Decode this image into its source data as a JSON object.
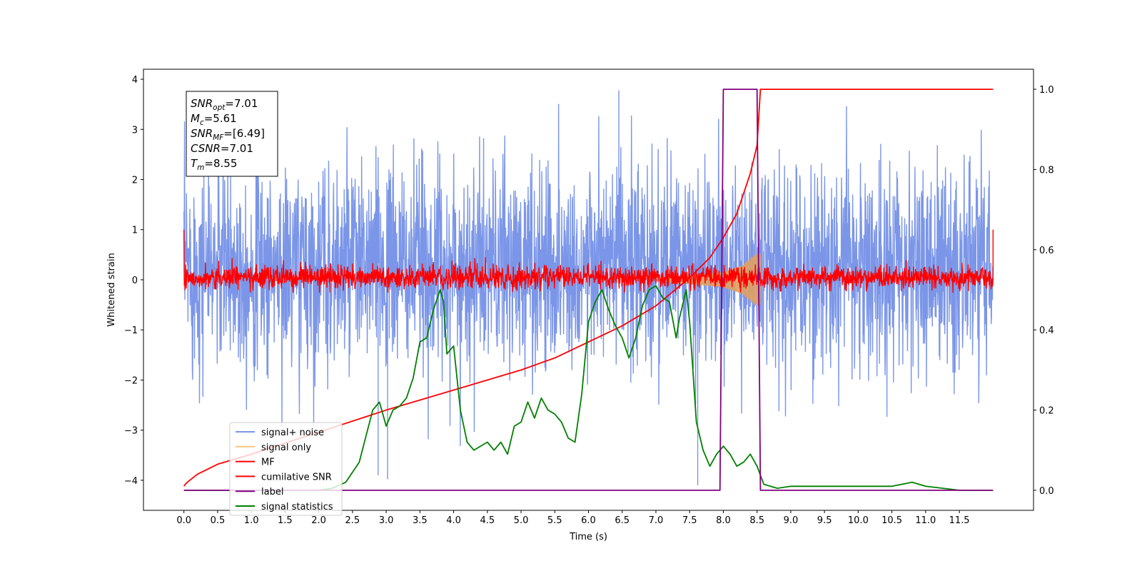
{
  "chart_data": {
    "type": "line",
    "xlabel": "Time (s)",
    "ylabel": "Whitened strain",
    "xlim": [
      -0.6,
      12.6
    ],
    "ylim": [
      -4.6,
      4.2
    ],
    "y2lim": [
      -0.05,
      1.05
    ],
    "x_ticks": [
      0.0,
      0.5,
      1.0,
      1.5,
      2.0,
      2.5,
      3.0,
      3.5,
      4.0,
      4.5,
      5.0,
      5.5,
      6.0,
      6.5,
      7.0,
      7.5,
      8.0,
      8.5,
      9.0,
      9.5,
      10.0,
      10.5,
      11.0,
      11.5
    ],
    "x_tick_labels": [
      "0.0",
      "0.5",
      "1.0",
      "1.5",
      "2.0",
      "2.5",
      "3.0",
      "3.5",
      "4.0",
      "4.5",
      "5.0",
      "5.5",
      "6.0",
      "6.5",
      "7.0",
      "7.5",
      "8.0",
      "8.5",
      "9.0",
      "9.5",
      "10.0",
      "10.5",
      "11.0",
      "11.5"
    ],
    "y_ticks": [
      -4,
      -3,
      -2,
      -1,
      0,
      1,
      2,
      3,
      4
    ],
    "y_tick_labels": [
      "−4",
      "−3",
      "−2",
      "−1",
      "0",
      "1",
      "2",
      "3",
      "4"
    ],
    "y2_ticks": [
      0.0,
      0.2,
      0.4,
      0.6,
      0.8,
      1.0
    ],
    "y2_tick_labels": [
      "0.0",
      "0.2",
      "0.4",
      "0.6",
      "0.8",
      "1.0"
    ],
    "grid": false,
    "legend_position": "lower-left",
    "colors": {
      "signal_noise": "#7b96e8",
      "signal_only": "#f5c77e",
      "mf": "#ff0000",
      "cumulative_snr": "#ff0000",
      "label": "#800080",
      "signal_statistics": "#008000"
    },
    "legend": [
      {
        "label": "signal+ noise",
        "color": "#7b96e8"
      },
      {
        "label": "signal only",
        "color": "#f5c77e"
      },
      {
        "label": "MF",
        "color": "#ff0000"
      },
      {
        "label": "cumilative SNR",
        "color": "#ff0000"
      },
      {
        "label": "label",
        "color": "#800080"
      },
      {
        "label": "signal statistics",
        "color": "#008000"
      }
    ],
    "annotations": [
      {
        "base": "SNR",
        "sub": "opt",
        "rest": "=7.01"
      },
      {
        "base": "M",
        "sub": "c",
        "rest": "=5.61"
      },
      {
        "base": "SNR",
        "sub": "MF",
        "rest": "=[6.49]"
      },
      {
        "base": "CSNR",
        "sub": "",
        "rest": "=7.01"
      },
      {
        "base": "T",
        "sub": "m",
        "rest": "=8.55"
      }
    ],
    "series": [
      {
        "name": "signal+ noise",
        "axis": "left",
        "kind": "noise_band",
        "x_range": [
          0.0,
          12.0
        ],
        "typical_range": [
          -1.9,
          2.4
        ],
        "extremes": [
          -4.1,
          3.8
        ],
        "spikes": [
          {
            "x": 7.62,
            "y": -4.1
          },
          {
            "x": 6.45,
            "y": 3.78
          },
          {
            "x": 2.88,
            "y": -3.9
          },
          {
            "x": 3.02,
            "y": -3.98
          }
        ]
      },
      {
        "name": "MF",
        "axis": "left",
        "kind": "noise_band",
        "x_range": [
          0.0,
          12.0
        ],
        "typical_range": [
          -0.2,
          0.3
        ],
        "extremes": [
          -0.25,
          0.5
        ],
        "edges": {
          "start": 1.0,
          "end": 1.0
        }
      },
      {
        "name": "signal only",
        "axis": "left",
        "kind": "chirp",
        "x": [
          7.0,
          7.5,
          8.0,
          8.3,
          8.45,
          8.55
        ],
        "amplitude": [
          0.03,
          0.08,
          0.15,
          0.3,
          0.5,
          0.55
        ]
      },
      {
        "name": "cumilative SNR",
        "axis": "right",
        "x": [
          0.0,
          0.02,
          0.05,
          0.2,
          0.5,
          1.0,
          2.0,
          3.0,
          4.0,
          5.0,
          5.5,
          6.0,
          6.5,
          7.0,
          7.5,
          7.8,
          8.0,
          8.2,
          8.4,
          8.5,
          8.55,
          9.0,
          10.0,
          11.0,
          12.0
        ],
        "y": [
          0.01,
          0.015,
          0.02,
          0.04,
          0.065,
          0.09,
          0.145,
          0.2,
          0.25,
          0.3,
          0.33,
          0.37,
          0.41,
          0.46,
          0.53,
          0.58,
          0.63,
          0.69,
          0.79,
          0.86,
          1.0,
          1.0,
          1.0,
          1.0,
          1.0
        ]
      },
      {
        "name": "label",
        "axis": "right",
        "x": [
          0.0,
          7.95,
          8.0,
          8.5,
          8.55,
          12.0
        ],
        "y": [
          0.0,
          0.0,
          1.0,
          1.0,
          0.0,
          0.0
        ]
      },
      {
        "name": "signal statistics",
        "axis": "right",
        "x": [
          0.0,
          0.5,
          1.0,
          1.5,
          2.0,
          2.2,
          2.4,
          2.6,
          2.8,
          2.9,
          3.0,
          3.1,
          3.2,
          3.3,
          3.4,
          3.5,
          3.6,
          3.7,
          3.8,
          3.85,
          3.9,
          4.0,
          4.1,
          4.2,
          4.3,
          4.4,
          4.5,
          4.6,
          4.7,
          4.8,
          4.9,
          5.0,
          5.1,
          5.2,
          5.3,
          5.4,
          5.5,
          5.6,
          5.7,
          5.8,
          5.9,
          6.0,
          6.1,
          6.2,
          6.3,
          6.4,
          6.5,
          6.6,
          6.7,
          6.8,
          6.9,
          7.0,
          7.1,
          7.2,
          7.3,
          7.35,
          7.45,
          7.5,
          7.6,
          7.7,
          7.8,
          7.9,
          8.0,
          8.1,
          8.2,
          8.3,
          8.4,
          8.5,
          8.6,
          8.8,
          9.0,
          9.5,
          10.0,
          10.5,
          10.8,
          11.0,
          11.5,
          12.0
        ],
        "y": [
          0.0,
          0.0,
          0.0,
          0.0,
          0.0,
          0.005,
          0.02,
          0.07,
          0.2,
          0.22,
          0.16,
          0.2,
          0.21,
          0.23,
          0.28,
          0.37,
          0.38,
          0.45,
          0.5,
          0.47,
          0.34,
          0.36,
          0.2,
          0.12,
          0.1,
          0.11,
          0.12,
          0.1,
          0.12,
          0.09,
          0.16,
          0.17,
          0.22,
          0.18,
          0.23,
          0.2,
          0.19,
          0.17,
          0.13,
          0.12,
          0.24,
          0.42,
          0.47,
          0.5,
          0.45,
          0.41,
          0.38,
          0.33,
          0.38,
          0.46,
          0.5,
          0.51,
          0.48,
          0.47,
          0.38,
          0.43,
          0.5,
          0.42,
          0.17,
          0.1,
          0.06,
          0.09,
          0.11,
          0.09,
          0.06,
          0.07,
          0.09,
          0.06,
          0.015,
          0.005,
          0.01,
          0.01,
          0.01,
          0.01,
          0.02,
          0.01,
          0.0,
          0.0
        ]
      }
    ]
  }
}
